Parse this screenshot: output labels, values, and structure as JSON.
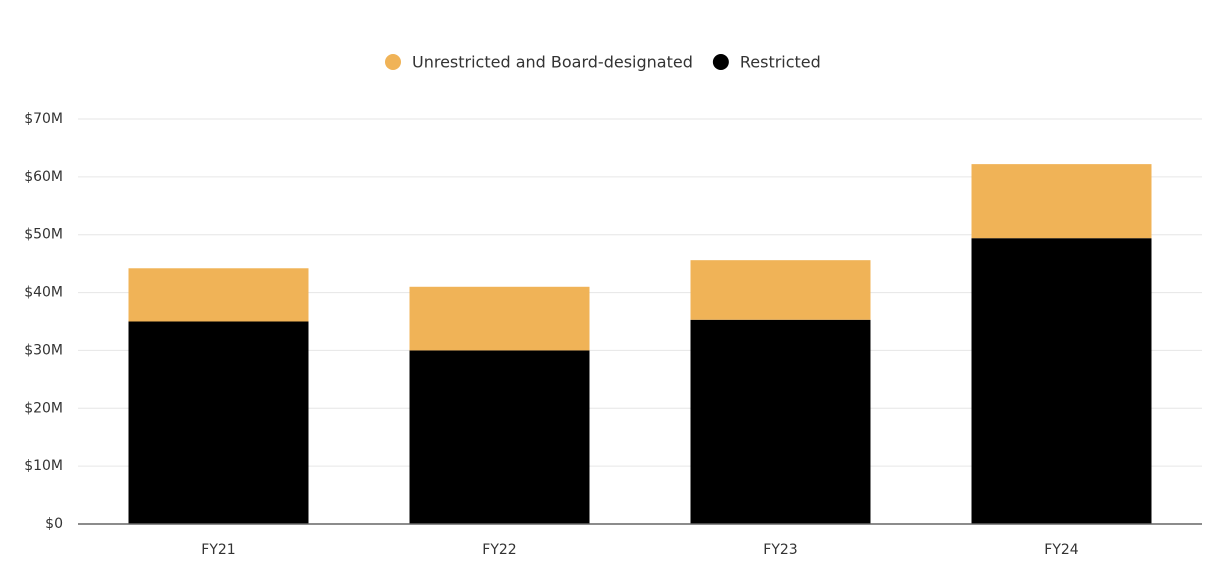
{
  "chart_data": {
    "type": "stacked_bar",
    "categories": [
      "FY21",
      "FY22",
      "FY23",
      "FY24"
    ],
    "series": [
      {
        "name": "Unrestricted and Board-designated",
        "color": "#f0b357",
        "values": [
          9200000,
          11000000,
          10300000,
          12800000
        ]
      },
      {
        "name": "Restricted",
        "color": "#000000",
        "values": [
          35000000,
          30000000,
          35300000,
          49400000
        ]
      }
    ],
    "ylim": [
      0,
      70000000
    ],
    "yticks": [
      {
        "value": 0,
        "label": "$0"
      },
      {
        "value": 10000000,
        "label": "$10M"
      },
      {
        "value": 20000000,
        "label": "$20M"
      },
      {
        "value": 30000000,
        "label": "$30M"
      },
      {
        "value": 40000000,
        "label": "$40M"
      },
      {
        "value": 50000000,
        "label": "$50M"
      },
      {
        "value": 60000000,
        "label": "$60M"
      },
      {
        "value": 70000000,
        "label": "$70M"
      }
    ],
    "grid": true,
    "legend": "top"
  }
}
